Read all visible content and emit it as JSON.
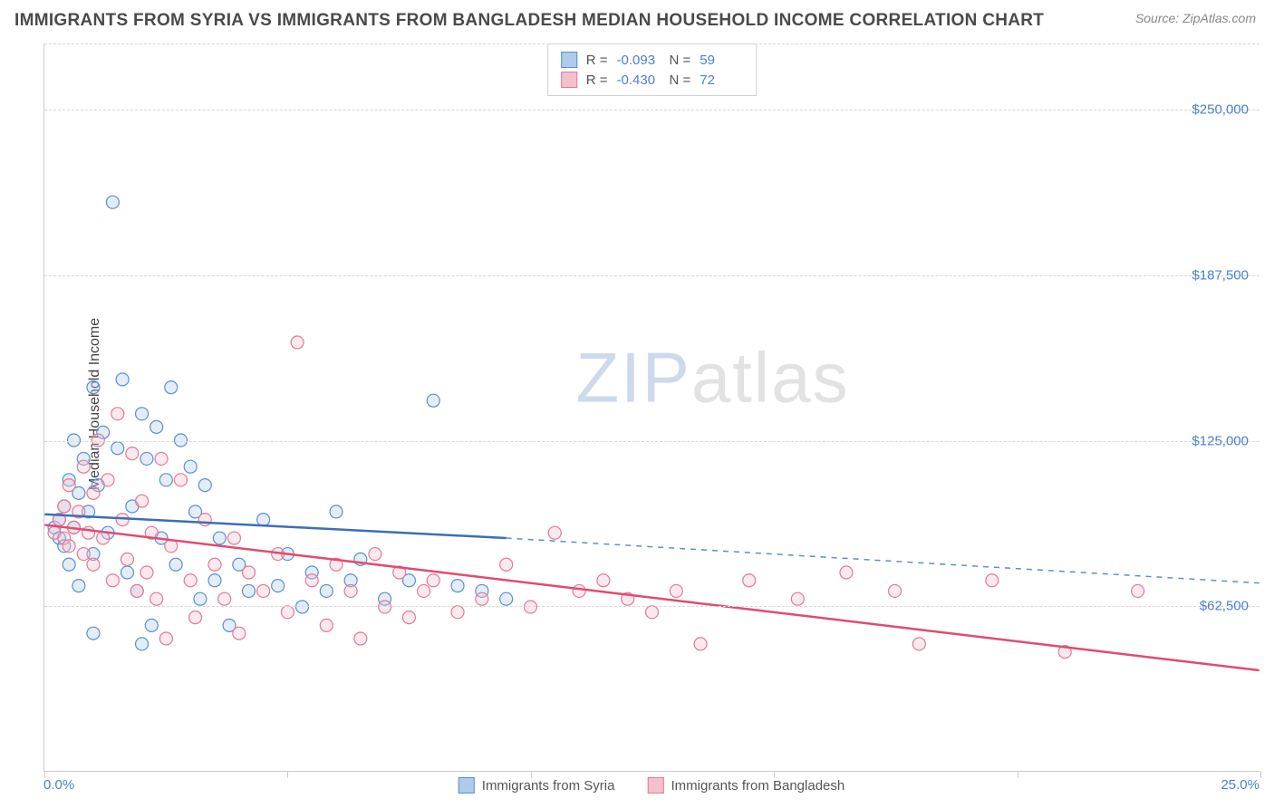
{
  "header": {
    "title": "IMMIGRANTS FROM SYRIA VS IMMIGRANTS FROM BANGLADESH MEDIAN HOUSEHOLD INCOME CORRELATION CHART",
    "source": "Source: ZipAtlas.com"
  },
  "watermark": {
    "part1": "ZIP",
    "part2": "atlas"
  },
  "chart": {
    "type": "scatter",
    "background_color": "#ffffff",
    "grid_color": "#d8d8d8",
    "axis_color": "#cccccc",
    "ylabel": "Median Household Income",
    "ylabel_fontsize": 16,
    "ylabel_color": "#444444",
    "xlim": [
      0,
      25
    ],
    "ylim": [
      0,
      275000
    ],
    "xtick_positions": [
      0,
      5,
      10,
      15,
      20,
      25
    ],
    "xtick_labels_shown": {
      "min": "0.0%",
      "max": "25.0%"
    },
    "ytick_positions": [
      62500,
      125000,
      187500,
      250000
    ],
    "ytick_labels": [
      "$62,500",
      "$125,000",
      "$187,500",
      "$250,000"
    ],
    "tick_label_color": "#4a7fd6",
    "tick_label_fontsize": 15,
    "marker_radius": 7,
    "marker_stroke_width": 1.2,
    "marker_fill_opacity": 0.35,
    "series": [
      {
        "id": "syria",
        "label": "Immigrants from Syria",
        "fill": "#aecbec",
        "stroke": "#5b8fd0",
        "line_color": "#3d6db8",
        "line_width": 2.5,
        "dash_color": "#5b8fd0",
        "r_value": "-0.093",
        "n_value": "59",
        "regression": {
          "x1": 0,
          "y1": 97000,
          "x2_solid": 9.5,
          "y2_solid": 88000,
          "x2": 25,
          "y2": 71000
        },
        "points": [
          [
            0.2,
            92000
          ],
          [
            0.3,
            95000
          ],
          [
            0.3,
            88000
          ],
          [
            0.4,
            100000
          ],
          [
            0.4,
            85000
          ],
          [
            0.5,
            110000
          ],
          [
            0.5,
            78000
          ],
          [
            0.6,
            125000
          ],
          [
            0.6,
            92000
          ],
          [
            0.7,
            105000
          ],
          [
            0.7,
            70000
          ],
          [
            0.8,
            118000
          ],
          [
            0.9,
            98000
          ],
          [
            1.0,
            145000
          ],
          [
            1.0,
            82000
          ],
          [
            1.1,
            108000
          ],
          [
            1.2,
            128000
          ],
          [
            1.3,
            90000
          ],
          [
            1.4,
            215000
          ],
          [
            1.5,
            122000
          ],
          [
            1.6,
            148000
          ],
          [
            1.7,
            75000
          ],
          [
            1.8,
            100000
          ],
          [
            1.9,
            68000
          ],
          [
            2.0,
            135000
          ],
          [
            2.1,
            118000
          ],
          [
            2.2,
            55000
          ],
          [
            2.3,
            130000
          ],
          [
            2.4,
            88000
          ],
          [
            2.5,
            110000
          ],
          [
            2.6,
            145000
          ],
          [
            2.7,
            78000
          ],
          [
            2.8,
            125000
          ],
          [
            3.0,
            115000
          ],
          [
            3.1,
            98000
          ],
          [
            3.2,
            65000
          ],
          [
            3.3,
            108000
          ],
          [
            3.5,
            72000
          ],
          [
            3.6,
            88000
          ],
          [
            3.8,
            55000
          ],
          [
            4.0,
            78000
          ],
          [
            4.2,
            68000
          ],
          [
            4.5,
            95000
          ],
          [
            4.8,
            70000
          ],
          [
            5.0,
            82000
          ],
          [
            5.3,
            62000
          ],
          [
            5.5,
            75000
          ],
          [
            5.8,
            68000
          ],
          [
            6.0,
            98000
          ],
          [
            6.3,
            72000
          ],
          [
            6.5,
            80000
          ],
          [
            7.0,
            65000
          ],
          [
            7.5,
            72000
          ],
          [
            8.0,
            140000
          ],
          [
            8.5,
            70000
          ],
          [
            9.0,
            68000
          ],
          [
            9.5,
            65000
          ],
          [
            1.0,
            52000
          ],
          [
            2.0,
            48000
          ]
        ]
      },
      {
        "id": "bangladesh",
        "label": "Immigrants from Bangladesh",
        "fill": "#f4c0cd",
        "stroke": "#e07a96",
        "line_color": "#e24a72",
        "line_width": 2.5,
        "r_value": "-0.430",
        "n_value": "72",
        "regression": {
          "x1": 0,
          "y1": 93000,
          "x2_solid": 25,
          "y2_solid": 38000,
          "x2": 25,
          "y2": 38000
        },
        "points": [
          [
            0.2,
            90000
          ],
          [
            0.3,
            95000
          ],
          [
            0.4,
            88000
          ],
          [
            0.4,
            100000
          ],
          [
            0.5,
            85000
          ],
          [
            0.5,
            108000
          ],
          [
            0.6,
            92000
          ],
          [
            0.7,
            98000
          ],
          [
            0.8,
            82000
          ],
          [
            0.8,
            115000
          ],
          [
            0.9,
            90000
          ],
          [
            1.0,
            105000
          ],
          [
            1.0,
            78000
          ],
          [
            1.1,
            125000
          ],
          [
            1.2,
            88000
          ],
          [
            1.3,
            110000
          ],
          [
            1.4,
            72000
          ],
          [
            1.5,
            135000
          ],
          [
            1.6,
            95000
          ],
          [
            1.7,
            80000
          ],
          [
            1.8,
            120000
          ],
          [
            1.9,
            68000
          ],
          [
            2.0,
            102000
          ],
          [
            2.1,
            75000
          ],
          [
            2.2,
            90000
          ],
          [
            2.3,
            65000
          ],
          [
            2.4,
            118000
          ],
          [
            2.5,
            50000
          ],
          [
            2.6,
            85000
          ],
          [
            2.8,
            110000
          ],
          [
            3.0,
            72000
          ],
          [
            3.1,
            58000
          ],
          [
            3.3,
            95000
          ],
          [
            3.5,
            78000
          ],
          [
            3.7,
            65000
          ],
          [
            3.9,
            88000
          ],
          [
            4.0,
            52000
          ],
          [
            4.2,
            75000
          ],
          [
            4.5,
            68000
          ],
          [
            4.8,
            82000
          ],
          [
            5.0,
            60000
          ],
          [
            5.2,
            162000
          ],
          [
            5.5,
            72000
          ],
          [
            5.8,
            55000
          ],
          [
            6.0,
            78000
          ],
          [
            6.3,
            68000
          ],
          [
            6.5,
            50000
          ],
          [
            6.8,
            82000
          ],
          [
            7.0,
            62000
          ],
          [
            7.3,
            75000
          ],
          [
            7.5,
            58000
          ],
          [
            7.8,
            68000
          ],
          [
            8.0,
            72000
          ],
          [
            8.5,
            60000
          ],
          [
            9.0,
            65000
          ],
          [
            9.5,
            78000
          ],
          [
            10.0,
            62000
          ],
          [
            10.5,
            90000
          ],
          [
            11.0,
            68000
          ],
          [
            11.5,
            72000
          ],
          [
            12.0,
            65000
          ],
          [
            12.5,
            60000
          ],
          [
            13.0,
            68000
          ],
          [
            13.5,
            48000
          ],
          [
            14.5,
            72000
          ],
          [
            15.5,
            65000
          ],
          [
            16.5,
            75000
          ],
          [
            17.5,
            68000
          ],
          [
            18.0,
            48000
          ],
          [
            19.5,
            72000
          ],
          [
            21.0,
            45000
          ],
          [
            22.5,
            68000
          ]
        ]
      }
    ],
    "top_legend": {
      "r_label": "R =",
      "n_label": "N ="
    },
    "bottom_legend_fontsize": 15
  }
}
